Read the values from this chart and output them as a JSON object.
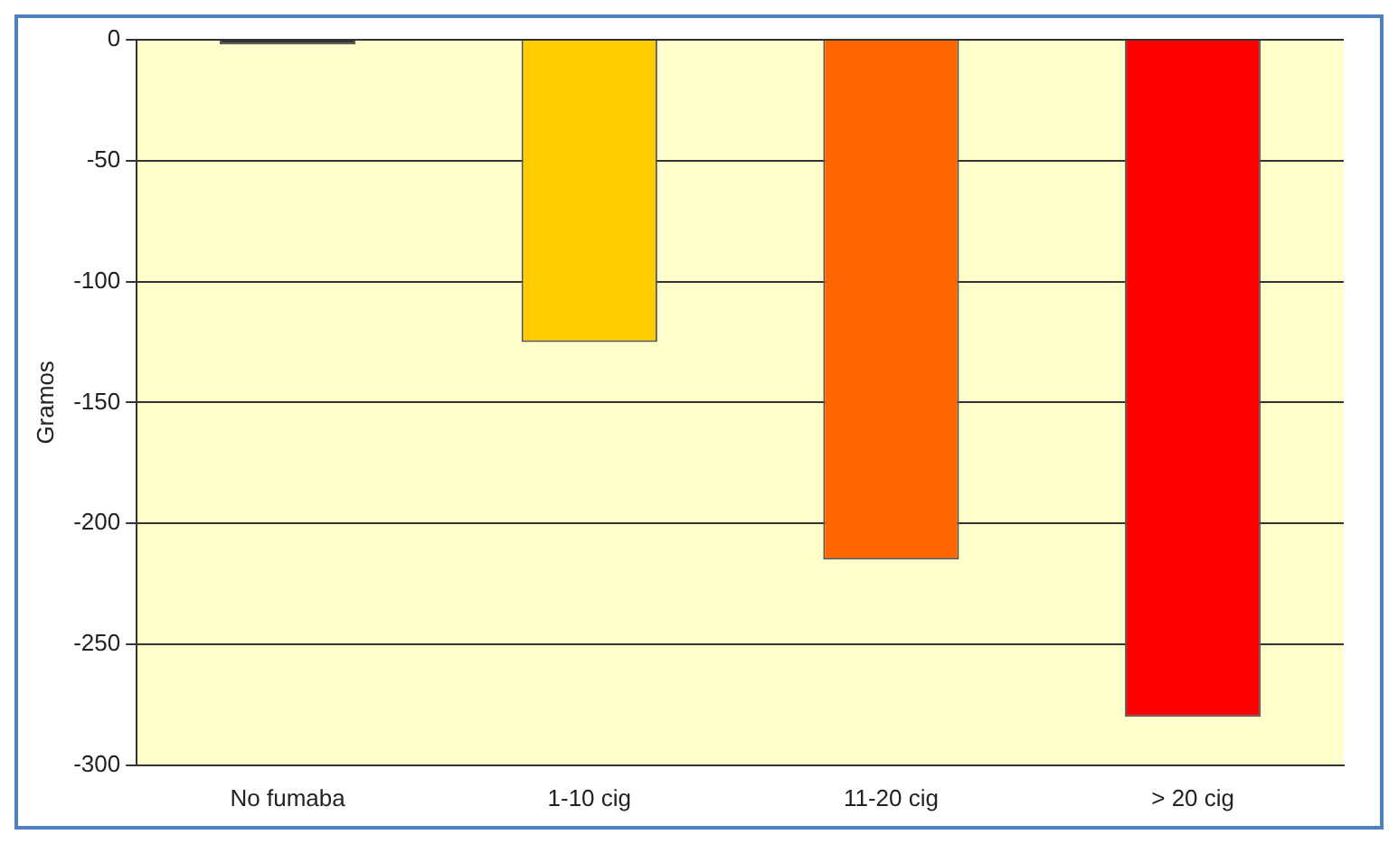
{
  "chart_data": {
    "type": "bar",
    "ylabel": "Gramos",
    "categories": [
      "No fumaba",
      "1-10 cig",
      "11-20 cig",
      "> 20 cig"
    ],
    "values": [
      -2,
      -125,
      -215,
      -280
    ],
    "colors": [
      "#333333",
      "#ffcc00",
      "#ff6600",
      "#ff0000"
    ],
    "ylim": [
      -300,
      0
    ],
    "yticks": [
      -300,
      -250,
      -200,
      -150,
      -100,
      -50,
      0
    ],
    "grid": "y"
  }
}
